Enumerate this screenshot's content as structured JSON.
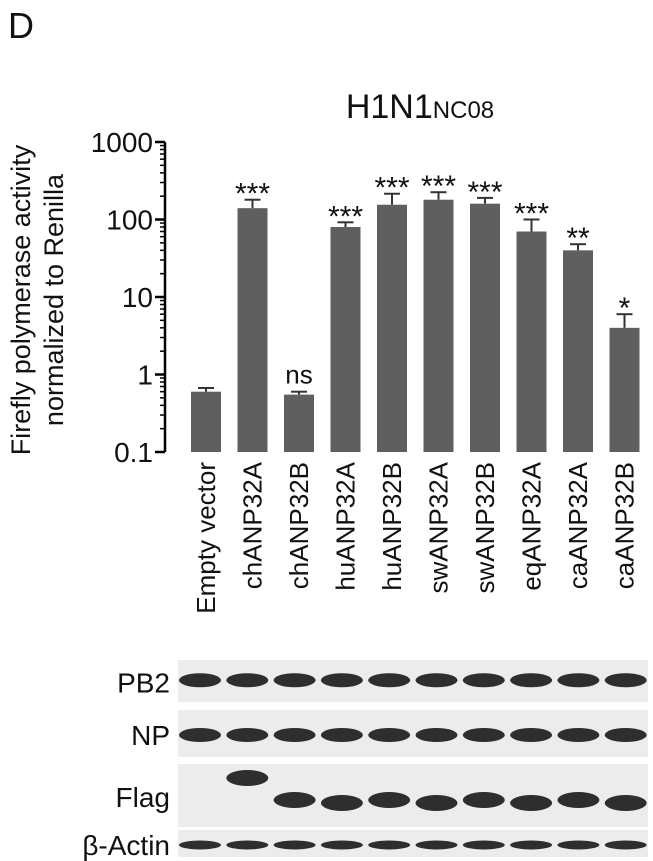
{
  "panel_label": "D",
  "chart_data": {
    "type": "bar",
    "title": "H1N1",
    "title_subscript": "NC08",
    "ylabel": [
      "Firefly polymerase activity",
      "normalized to Renilla"
    ],
    "categories": [
      "Empty vector",
      "chANP32A",
      "chANP32B",
      "huANP32A",
      "huANP32B",
      "swANP32A",
      "swANP32B",
      "eqANP32A",
      "caANP32A",
      "caANP32B"
    ],
    "values": [
      0.6,
      140,
      0.55,
      80,
      155,
      180,
      160,
      70,
      40,
      4
    ],
    "errors": [
      0.07,
      40,
      0.05,
      12,
      60,
      45,
      30,
      30,
      8,
      2
    ],
    "significance": [
      null,
      "***",
      "ns",
      "***",
      "***",
      "***",
      "***",
      "***",
      "**",
      "*"
    ],
    "color": "#5f5f5f",
    "log_y": true,
    "ylim": [
      0.1,
      1000
    ],
    "yticks": [
      0.1,
      1,
      10,
      100,
      1000
    ]
  },
  "blots": {
    "rows": [
      "PB2",
      "NP",
      "Flag",
      "β-Actin"
    ]
  }
}
